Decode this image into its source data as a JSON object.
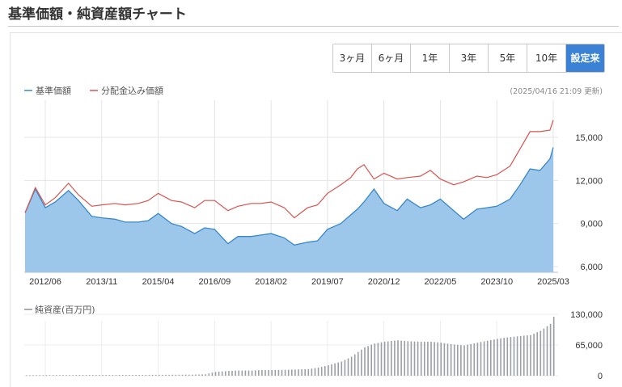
{
  "page": {
    "title": "基準価額・純資産額チャート"
  },
  "period_buttons": [
    {
      "label": "3ヶ月",
      "active": false
    },
    {
      "label": "6ヶ月",
      "active": false
    },
    {
      "label": "1年",
      "active": false
    },
    {
      "label": "3年",
      "active": false
    },
    {
      "label": "5年",
      "active": false
    },
    {
      "label": "10年",
      "active": false
    },
    {
      "label": "設定来",
      "active": true
    }
  ],
  "updated": "(2025/04/16 21:09 更新)",
  "colors": {
    "nav": "#3a87c8",
    "nav_fill": "#9cc7ea",
    "dist": "#d9534f",
    "bar": "#9a9fa5",
    "active": "#3b82d6"
  },
  "chart_data": [
    {
      "type": "area",
      "legend": "top-left",
      "grid": true,
      "x_ticks": [
        "2012/06",
        "2013/11",
        "2015/04",
        "2016/09",
        "2018/02",
        "2019/07",
        "2020/12",
        "2022/05",
        "2023/10",
        "2025/03"
      ],
      "y_ticks": [
        "6,000",
        "9,000",
        "12,000",
        "15,000"
      ],
      "ylim": [
        6000,
        17000
      ],
      "x": [
        "2011/11",
        "2012/03",
        "2012/06",
        "2012/09",
        "2013/01",
        "2013/04",
        "2013/08",
        "2013/11",
        "2014/03",
        "2014/06",
        "2014/10",
        "2015/01",
        "2015/04",
        "2015/08",
        "2015/11",
        "2016/03",
        "2016/06",
        "2016/09",
        "2017/01",
        "2017/04",
        "2017/08",
        "2017/11",
        "2018/02",
        "2018/06",
        "2018/09",
        "2019/01",
        "2019/04",
        "2019/07",
        "2019/11",
        "2020/02",
        "2020/04",
        "2020/06",
        "2020/09",
        "2020/12",
        "2021/04",
        "2021/07",
        "2021/11",
        "2022/02",
        "2022/05",
        "2022/09",
        "2022/12",
        "2023/04",
        "2023/07",
        "2023/10",
        "2024/02",
        "2024/05",
        "2024/08",
        "2024/11",
        "2025/02",
        "2025/03"
      ],
      "series": [
        {
          "name": "基準価額",
          "values": [
            9750,
            11400,
            10100,
            10500,
            11300,
            10600,
            9500,
            9400,
            9300,
            9100,
            9100,
            9200,
            9700,
            9000,
            8800,
            8300,
            8700,
            8600,
            7600,
            8100,
            8100,
            8200,
            8300,
            8000,
            7500,
            7700,
            7800,
            8600,
            9000,
            9600,
            10000,
            10500,
            11400,
            10400,
            9900,
            10700,
            10100,
            10300,
            10700,
            9900,
            9300,
            10000,
            10100,
            10200,
            10700,
            11700,
            12800,
            12700,
            13500,
            14300
          ]
        },
        {
          "name": "分配金込み価額",
          "values": [
            9750,
            11500,
            10300,
            10800,
            11800,
            11000,
            10200,
            10300,
            10400,
            10300,
            10400,
            10600,
            11100,
            10600,
            10500,
            10100,
            10600,
            10600,
            9900,
            10200,
            10400,
            10400,
            10500,
            10100,
            9400,
            10100,
            10300,
            11100,
            11700,
            12200,
            12800,
            13100,
            12100,
            12500,
            12100,
            12200,
            12300,
            12700,
            12100,
            11700,
            11900,
            12300,
            12200,
            12400,
            13000,
            14200,
            15400,
            15400,
            15500,
            16200
          ]
        }
      ]
    },
    {
      "type": "bar",
      "title": "純資産(百万円)",
      "grid": true,
      "y_ticks": [
        "0",
        "65,000",
        "130,000"
      ],
      "ylim": [
        0,
        135000
      ],
      "x": [
        "2011/11",
        "2012/03",
        "2012/06",
        "2012/09",
        "2013/01",
        "2013/04",
        "2013/08",
        "2013/11",
        "2014/03",
        "2014/06",
        "2014/10",
        "2015/01",
        "2015/04",
        "2015/08",
        "2015/11",
        "2016/03",
        "2016/06",
        "2016/09",
        "2017/01",
        "2017/04",
        "2017/08",
        "2017/11",
        "2018/02",
        "2018/06",
        "2018/09",
        "2019/01",
        "2019/04",
        "2019/07",
        "2019/11",
        "2020/02",
        "2020/04",
        "2020/06",
        "2020/09",
        "2020/12",
        "2021/04",
        "2021/07",
        "2021/11",
        "2022/02",
        "2022/05",
        "2022/09",
        "2022/12",
        "2023/04",
        "2023/07",
        "2023/10",
        "2024/02",
        "2024/05",
        "2024/08",
        "2024/11",
        "2025/02",
        "2025/03"
      ],
      "values": [
        1000,
        1200,
        1300,
        1300,
        1400,
        1500,
        1500,
        1600,
        1600,
        1700,
        1700,
        1800,
        1800,
        2000,
        2100,
        2300,
        3000,
        8000,
        10000,
        11000,
        11000,
        12000,
        12000,
        12500,
        13000,
        14000,
        17000,
        22000,
        30000,
        40000,
        50000,
        60000,
        68000,
        72000,
        75000,
        73000,
        72000,
        72000,
        70000,
        66000,
        64000,
        70000,
        74000,
        78000,
        82000,
        84000,
        86000,
        95000,
        110000,
        125000
      ]
    }
  ]
}
